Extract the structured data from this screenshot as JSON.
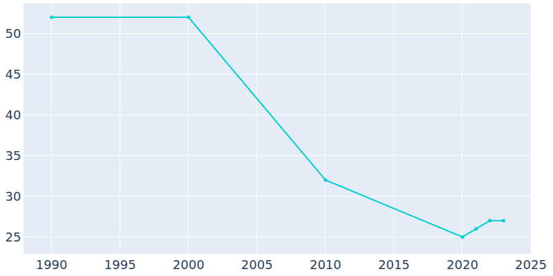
{
  "chart_data": {
    "type": "line",
    "x": [
      1990,
      2000,
      2010,
      2020,
      2021,
      2022,
      2023
    ],
    "values": [
      52,
      52,
      32,
      25,
      26,
      27,
      27
    ],
    "color": "#00ced1",
    "marker": "circle",
    "xlim": [
      1988,
      2025
    ],
    "xticks": [
      1990,
      1995,
      2000,
      2005,
      2010,
      2015,
      2020,
      2025
    ],
    "ylim": [
      23,
      53.7
    ],
    "yticks": [
      25,
      30,
      35,
      40,
      45,
      50
    ],
    "grid": true
  }
}
